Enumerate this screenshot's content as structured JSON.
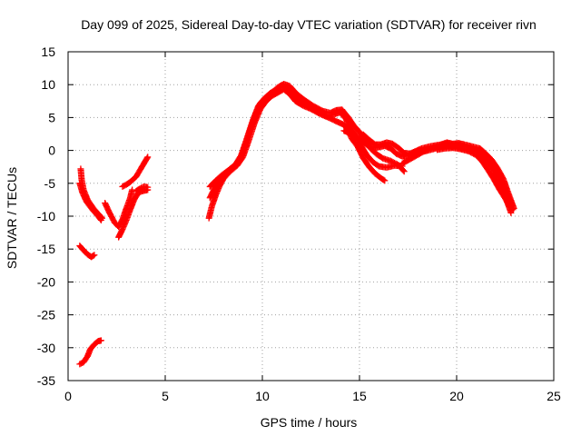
{
  "chart_data": {
    "type": "scatter",
    "title": "Day 099 of 2025, Sidereal Day-to-day VTEC variation (SDTVAR) for receiver rivn",
    "xlabel": "GPS time / hours",
    "ylabel": "SDTVAR / TECUs",
    "xlim": [
      0,
      25
    ],
    "ylim": [
      -35,
      15
    ],
    "xticks": [
      0,
      5,
      10,
      15,
      20,
      25
    ],
    "yticks": [
      -35,
      -30,
      -25,
      -20,
      -15,
      -10,
      -5,
      0,
      5,
      10,
      15
    ],
    "grid": true,
    "marker": "plus",
    "color": "#ff0000",
    "series": [
      {
        "name": "arc-1",
        "points": [
          [
            0.65,
            -2.8
          ],
          [
            0.7,
            -4.5
          ],
          [
            0.8,
            -6
          ],
          [
            1.0,
            -7.5
          ],
          [
            1.3,
            -8.8
          ],
          [
            1.6,
            -9.8
          ],
          [
            1.75,
            -10.3
          ]
        ]
      },
      {
        "name": "arc-2",
        "points": [
          [
            0.6,
            -5
          ],
          [
            0.75,
            -6.5
          ],
          [
            0.95,
            -7.8
          ],
          [
            1.25,
            -9
          ],
          [
            1.55,
            -10
          ],
          [
            1.7,
            -10.6
          ]
        ]
      },
      {
        "name": "arc-3",
        "points": [
          [
            0.6,
            -14.5
          ],
          [
            0.8,
            -15.2
          ],
          [
            1.0,
            -15.8
          ],
          [
            1.2,
            -16.2
          ],
          [
            1.35,
            -15.9
          ]
        ]
      },
      {
        "name": "arc-4",
        "points": [
          [
            0.6,
            -32.5
          ],
          [
            0.8,
            -32.2
          ],
          [
            1.0,
            -31.3
          ],
          [
            1.15,
            -30.2
          ],
          [
            1.35,
            -29.5
          ],
          [
            1.55,
            -29.0
          ],
          [
            1.7,
            -28.9
          ]
        ]
      },
      {
        "name": "arc-5",
        "points": [
          [
            1.9,
            -8
          ],
          [
            2.1,
            -9.3
          ],
          [
            2.4,
            -11
          ],
          [
            2.6,
            -11.6
          ],
          [
            2.8,
            -10.5
          ],
          [
            3.0,
            -8.8
          ],
          [
            3.2,
            -7.2
          ],
          [
            3.3,
            -6
          ]
        ]
      },
      {
        "name": "arc-6",
        "points": [
          [
            2.6,
            -13.2
          ],
          [
            2.8,
            -12
          ],
          [
            3.0,
            -10.6
          ],
          [
            3.2,
            -9
          ],
          [
            3.4,
            -7.5
          ],
          [
            3.6,
            -6.5
          ],
          [
            3.8,
            -6.2
          ],
          [
            4.1,
            -6
          ]
        ]
      },
      {
        "name": "arc-7",
        "points": [
          [
            2.8,
            -5.5
          ],
          [
            3.0,
            -5.2
          ],
          [
            3.2,
            -4.8
          ],
          [
            3.5,
            -4
          ],
          [
            3.8,
            -2.5
          ],
          [
            4.0,
            -1.5
          ],
          [
            4.1,
            -1
          ]
        ]
      },
      {
        "name": "arc-8",
        "points": [
          [
            3.5,
            -6.2
          ],
          [
            3.7,
            -5.8
          ],
          [
            3.9,
            -5.5
          ],
          [
            4.1,
            -5.6
          ]
        ]
      },
      {
        "name": "arc-9",
        "points": [
          [
            7.25,
            -10.3
          ],
          [
            7.4,
            -8.5
          ],
          [
            7.6,
            -6.8
          ],
          [
            7.8,
            -5.4
          ],
          [
            8.0,
            -4.3
          ],
          [
            8.3,
            -3.3
          ],
          [
            8.7,
            -2.3
          ],
          [
            9.0,
            -1
          ],
          [
            9.3,
            1.5
          ],
          [
            9.6,
            4.2
          ],
          [
            9.9,
            6.3
          ],
          [
            10.2,
            7.5
          ],
          [
            10.5,
            8.3
          ],
          [
            10.8,
            8.8
          ],
          [
            11.1,
            9.3
          ],
          [
            11.4,
            8.6
          ],
          [
            11.7,
            7.5
          ],
          [
            12.1,
            6.8
          ],
          [
            12.5,
            6.3
          ],
          [
            13.0,
            5.5
          ],
          [
            13.4,
            5.0
          ],
          [
            13.9,
            4.3
          ],
          [
            14.2,
            3.9
          ],
          [
            14.4,
            3.2
          ],
          [
            14.6,
            1.8
          ],
          [
            14.9,
            0.6
          ],
          [
            15.2,
            -1.2
          ],
          [
            15.5,
            -2.5
          ],
          [
            15.8,
            -3.5
          ],
          [
            16.1,
            -4.2
          ],
          [
            16.3,
            -4.6
          ]
        ]
      },
      {
        "name": "arc-10",
        "points": [
          [
            7.3,
            -7.2
          ],
          [
            7.5,
            -6
          ],
          [
            7.7,
            -5
          ],
          [
            7.9,
            -4.1
          ],
          [
            8.2,
            -3.2
          ],
          [
            8.6,
            -2.2
          ],
          [
            8.9,
            -0.8
          ],
          [
            9.2,
            1.8
          ],
          [
            9.5,
            4.5
          ],
          [
            9.8,
            6.8
          ],
          [
            10.1,
            7.9
          ],
          [
            10.4,
            8.7
          ],
          [
            10.7,
            9.2
          ],
          [
            11.0,
            9.9
          ],
          [
            11.3,
            9.3
          ],
          [
            11.6,
            8.2
          ],
          [
            12.0,
            7.3
          ],
          [
            12.4,
            6.6
          ],
          [
            12.9,
            5.9
          ],
          [
            13.3,
            5.2
          ],
          [
            13.7,
            5.5
          ],
          [
            14.0,
            5.8
          ],
          [
            14.3,
            4.8
          ],
          [
            14.5,
            3.5
          ],
          [
            14.8,
            2.3
          ],
          [
            15.1,
            0.6
          ],
          [
            15.4,
            -0.8
          ],
          [
            15.7,
            -1.8
          ],
          [
            16.0,
            -2.4
          ],
          [
            16.4,
            -2.6
          ],
          [
            16.8,
            -2.3
          ],
          [
            17.2,
            -2.4
          ]
        ]
      },
      {
        "name": "arc-11",
        "points": [
          [
            7.3,
            -5.5
          ],
          [
            7.6,
            -4.6
          ],
          [
            7.9,
            -3.8
          ],
          [
            8.3,
            -2.9
          ],
          [
            8.7,
            -2
          ],
          [
            9.0,
            -0.3
          ],
          [
            9.3,
            2.6
          ],
          [
            9.6,
            5.2
          ],
          [
            9.9,
            7.2
          ],
          [
            10.2,
            8.1
          ],
          [
            10.5,
            8.8
          ],
          [
            10.8,
            9.6
          ],
          [
            11.1,
            10.1
          ],
          [
            11.4,
            9.8
          ],
          [
            11.8,
            8.5
          ],
          [
            12.2,
            7.6
          ],
          [
            12.6,
            6.8
          ],
          [
            13.1,
            6.0
          ],
          [
            13.5,
            5.7
          ],
          [
            13.8,
            6.1
          ],
          [
            14.1,
            6.2
          ],
          [
            14.4,
            5.1
          ],
          [
            14.7,
            3.8
          ],
          [
            15.0,
            2.8
          ],
          [
            15.3,
            1.5
          ],
          [
            15.6,
            0.2
          ],
          [
            15.9,
            -0.6
          ],
          [
            16.2,
            -1.2
          ],
          [
            16.6,
            -1.6
          ],
          [
            17.0,
            -2.2
          ],
          [
            17.3,
            -3.2
          ]
        ]
      },
      {
        "name": "arc-12",
        "points": [
          [
            14.2,
            3.0
          ],
          [
            14.5,
            2.6
          ],
          [
            14.8,
            2.1
          ],
          [
            15.1,
            1.4
          ],
          [
            15.4,
            0.8
          ],
          [
            15.7,
            0.4
          ],
          [
            16.0,
            0.5
          ],
          [
            16.3,
            0.7
          ],
          [
            16.6,
            0.3
          ],
          [
            16.9,
            -0.5
          ],
          [
            17.2,
            -0.9
          ],
          [
            17.5,
            -0.8
          ],
          [
            17.8,
            -0.3
          ],
          [
            18.1,
            0.0
          ]
        ]
      },
      {
        "name": "arc-13",
        "points": [
          [
            15.2,
            2.4
          ],
          [
            15.5,
            1.6
          ],
          [
            15.8,
            0.9
          ],
          [
            16.1,
            0.9
          ],
          [
            16.4,
            1.2
          ],
          [
            16.7,
            1.0
          ],
          [
            17.0,
            0.4
          ],
          [
            17.3,
            -0.4
          ],
          [
            17.6,
            -0.5
          ],
          [
            17.9,
            -0.1
          ],
          [
            18.2,
            0.3
          ],
          [
            18.6,
            0.6
          ],
          [
            19.0,
            0.8
          ],
          [
            19.4,
            1.0
          ],
          [
            19.8,
            0.9
          ],
          [
            20.2,
            0.8
          ],
          [
            20.6,
            0.5
          ],
          [
            21.0,
            0.1
          ],
          [
            21.3,
            -0.6
          ],
          [
            21.6,
            -1.6
          ],
          [
            21.9,
            -2.8
          ],
          [
            22.2,
            -4.2
          ],
          [
            22.5,
            -5.8
          ],
          [
            22.7,
            -7.3
          ],
          [
            22.9,
            -8.4
          ]
        ]
      },
      {
        "name": "arc-14",
        "points": [
          [
            17.2,
            -2.0
          ],
          [
            17.5,
            -1.5
          ],
          [
            17.8,
            -1.0
          ],
          [
            18.1,
            -0.5
          ],
          [
            18.4,
            0.0
          ],
          [
            18.8,
            0.4
          ],
          [
            19.2,
            0.9
          ],
          [
            19.5,
            1.2
          ],
          [
            19.8,
            1.0
          ],
          [
            20.1,
            1.1
          ],
          [
            20.4,
            0.9
          ],
          [
            20.8,
            0.6
          ],
          [
            21.2,
            0.3
          ],
          [
            21.5,
            -0.5
          ],
          [
            21.8,
            -1.4
          ],
          [
            22.1,
            -2.7
          ],
          [
            22.4,
            -4.3
          ],
          [
            22.6,
            -6.0
          ],
          [
            22.8,
            -7.6
          ],
          [
            22.95,
            -8.8
          ]
        ]
      },
      {
        "name": "arc-15",
        "points": [
          [
            18.0,
            -0.4
          ],
          [
            18.4,
            -0.1
          ],
          [
            18.8,
            0.2
          ],
          [
            19.2,
            0.5
          ],
          [
            19.6,
            0.6
          ],
          [
            20.0,
            0.5
          ],
          [
            20.4,
            0.2
          ],
          [
            20.8,
            0.0
          ],
          [
            21.2,
            -0.4
          ],
          [
            21.5,
            -1.2
          ],
          [
            21.8,
            -2.5
          ],
          [
            22.1,
            -4.0
          ],
          [
            22.4,
            -5.9
          ],
          [
            22.6,
            -7.8
          ],
          [
            22.8,
            -9.5
          ]
        ]
      },
      {
        "name": "arc-16",
        "points": [
          [
            19.0,
            0.1
          ],
          [
            19.4,
            0.3
          ],
          [
            19.8,
            0.4
          ],
          [
            20.2,
            0.2
          ],
          [
            20.6,
            -0.1
          ],
          [
            21.0,
            -0.7
          ],
          [
            21.3,
            -1.6
          ],
          [
            21.6,
            -2.9
          ],
          [
            21.9,
            -4.3
          ],
          [
            22.2,
            -5.9
          ],
          [
            22.5,
            -7.3
          ],
          [
            22.7,
            -8.4
          ],
          [
            22.9,
            -9.0
          ]
        ]
      }
    ]
  }
}
